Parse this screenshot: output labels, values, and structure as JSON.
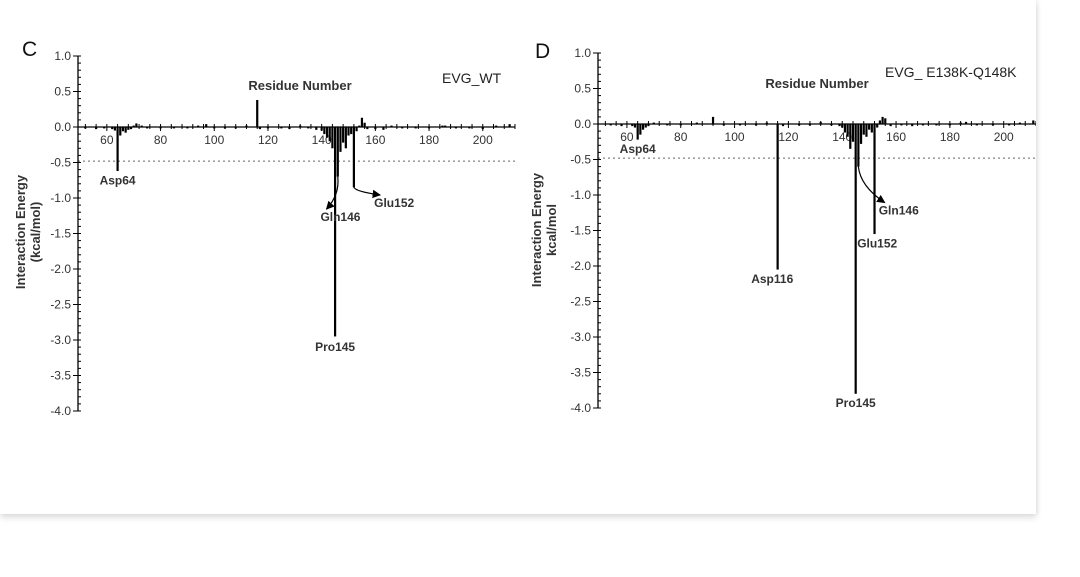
{
  "colors": {
    "bar": "#000000",
    "threshold": "#666666",
    "text": "#333333"
  },
  "chart_data": [
    {
      "type": "bar",
      "panel_label": "C",
      "title": "EVG_WT",
      "xlabel": "Residue Number",
      "ylabel_lines": [
        "Interaction Energy",
        "(kcal/mol)"
      ],
      "xlim": [
        50,
        212
      ],
      "ylim": [
        -4.0,
        1.0
      ],
      "xticks": [
        60,
        80,
        100,
        120,
        140,
        160,
        180,
        200
      ],
      "yticks": [
        1.0,
        0.5,
        0.0,
        -0.5,
        -1.0,
        -1.5,
        -2.0,
        -2.5,
        -3.0,
        -3.5,
        -4.0
      ],
      "ytick_labels": [
        "1.0",
        "0.5",
        "0.0",
        "-0.5",
        "-1.0",
        "-1.5",
        "-2.0",
        "-2.5",
        "-3.0",
        "-3.5",
        "-4.0"
      ],
      "threshold": -0.48,
      "bars": [
        {
          "x": 52,
          "y": -0.02
        },
        {
          "x": 56,
          "y": -0.03
        },
        {
          "x": 59,
          "y": -0.02
        },
        {
          "x": 62,
          "y": -0.03
        },
        {
          "x": 63,
          "y": -0.05
        },
        {
          "x": 64,
          "y": -0.62
        },
        {
          "x": 65,
          "y": -0.12
        },
        {
          "x": 66,
          "y": -0.06
        },
        {
          "x": 67,
          "y": -0.08
        },
        {
          "x": 68,
          "y": -0.04
        },
        {
          "x": 69,
          "y": -0.03
        },
        {
          "x": 70,
          "y": 0.02
        },
        {
          "x": 71,
          "y": 0.05
        },
        {
          "x": 73,
          "y": 0.02
        },
        {
          "x": 75,
          "y": -0.02
        },
        {
          "x": 80,
          "y": -0.02
        },
        {
          "x": 85,
          "y": -0.02
        },
        {
          "x": 90,
          "y": -0.02
        },
        {
          "x": 94,
          "y": 0.02
        },
        {
          "x": 97,
          "y": 0.04
        },
        {
          "x": 100,
          "y": -0.02
        },
        {
          "x": 104,
          "y": -0.02
        },
        {
          "x": 108,
          "y": -0.02
        },
        {
          "x": 112,
          "y": 0.02
        },
        {
          "x": 116,
          "y": 0.38
        },
        {
          "x": 117,
          "y": -0.03
        },
        {
          "x": 120,
          "y": -0.02
        },
        {
          "x": 125,
          "y": -0.02
        },
        {
          "x": 128,
          "y": -0.03
        },
        {
          "x": 132,
          "y": 0.02
        },
        {
          "x": 135,
          "y": -0.02
        },
        {
          "x": 138,
          "y": -0.04
        },
        {
          "x": 140,
          "y": -0.05
        },
        {
          "x": 141,
          "y": -0.1
        },
        {
          "x": 142,
          "y": -0.15
        },
        {
          "x": 143,
          "y": -0.2
        },
        {
          "x": 144,
          "y": -0.3
        },
        {
          "x": 145,
          "y": -2.95
        },
        {
          "x": 146,
          "y": -0.7
        },
        {
          "x": 147,
          "y": -0.35
        },
        {
          "x": 148,
          "y": -0.22
        },
        {
          "x": 149,
          "y": -0.3
        },
        {
          "x": 150,
          "y": -0.12
        },
        {
          "x": 151,
          "y": -0.1
        },
        {
          "x": 152,
          "y": -0.85
        },
        {
          "x": 153,
          "y": -0.06
        },
        {
          "x": 154,
          "y": 0.02
        },
        {
          "x": 155,
          "y": 0.13
        },
        {
          "x": 156,
          "y": 0.06
        },
        {
          "x": 157,
          "y": -0.03
        },
        {
          "x": 160,
          "y": -0.03
        },
        {
          "x": 163,
          "y": -0.04
        },
        {
          "x": 166,
          "y": 0.02
        },
        {
          "x": 170,
          "y": -0.02
        },
        {
          "x": 175,
          "y": -0.02
        },
        {
          "x": 180,
          "y": -0.02
        },
        {
          "x": 185,
          "y": 0.02
        },
        {
          "x": 186,
          "y": 0.02
        },
        {
          "x": 190,
          "y": -0.02
        },
        {
          "x": 195,
          "y": -0.02
        },
        {
          "x": 200,
          "y": -0.03
        },
        {
          "x": 205,
          "y": 0.02
        },
        {
          "x": 210,
          "y": 0.04
        }
      ],
      "annotations": [
        {
          "text": "Asp64",
          "x": 64,
          "y": -0.62,
          "tx": 64,
          "ty": -0.75,
          "arrow": false
        },
        {
          "text": "Gln146",
          "x": 146,
          "y": -0.7,
          "tx": 147,
          "ty": -1.27,
          "arrow": true
        },
        {
          "text": "Glu152",
          "x": 152,
          "y": -0.85,
          "tx": 167,
          "ty": -1.07,
          "arrow": true
        },
        {
          "text": "Pro145",
          "x": 145,
          "y": -2.95,
          "tx": 145,
          "ty": -3.1,
          "arrow": false
        }
      ]
    },
    {
      "type": "bar",
      "panel_label": "D",
      "title": "EVG_ E138K-Q148K",
      "xlabel": "Residue Number",
      "ylabel_lines": [
        "Interaction Energy",
        "kcal/mol"
      ],
      "xlim": [
        50,
        212
      ],
      "ylim": [
        -4.0,
        1.0
      ],
      "xticks": [
        60,
        80,
        100,
        120,
        140,
        160,
        180,
        200
      ],
      "yticks": [
        1.0,
        0.5,
        0.0,
        -0.5,
        -1.0,
        -1.5,
        -2.0,
        -2.5,
        -3.0,
        -3.5,
        -4.0
      ],
      "ytick_labels": [
        "1.0",
        "0.5",
        "0.0",
        "-0.5",
        "-1.0",
        "-1.5",
        "-2.0",
        "-2.5",
        "-3.0",
        "-3.5",
        "-4.0"
      ],
      "threshold": -0.48,
      "bars": [
        {
          "x": 54,
          "y": -0.02
        },
        {
          "x": 58,
          "y": -0.03
        },
        {
          "x": 62,
          "y": -0.03
        },
        {
          "x": 63,
          "y": -0.05
        },
        {
          "x": 64,
          "y": -0.22
        },
        {
          "x": 65,
          "y": -0.15
        },
        {
          "x": 66,
          "y": -0.08
        },
        {
          "x": 67,
          "y": -0.05
        },
        {
          "x": 68,
          "y": -0.03
        },
        {
          "x": 70,
          "y": 0.02
        },
        {
          "x": 75,
          "y": -0.02
        },
        {
          "x": 80,
          "y": -0.02
        },
        {
          "x": 86,
          "y": 0.02
        },
        {
          "x": 92,
          "y": 0.1
        },
        {
          "x": 96,
          "y": -0.02
        },
        {
          "x": 102,
          "y": -0.02
        },
        {
          "x": 108,
          "y": -0.02
        },
        {
          "x": 112,
          "y": 0.02
        },
        {
          "x": 116,
          "y": -2.05
        },
        {
          "x": 118,
          "y": -0.03
        },
        {
          "x": 124,
          "y": -0.02
        },
        {
          "x": 128,
          "y": -0.02
        },
        {
          "x": 132,
          "y": 0.03
        },
        {
          "x": 136,
          "y": -0.02
        },
        {
          "x": 139,
          "y": -0.03
        },
        {
          "x": 140,
          "y": -0.05
        },
        {
          "x": 141,
          "y": -0.12
        },
        {
          "x": 142,
          "y": -0.18
        },
        {
          "x": 143,
          "y": -0.35
        },
        {
          "x": 144,
          "y": -0.25
        },
        {
          "x": 145,
          "y": -3.8
        },
        {
          "x": 146,
          "y": -0.6
        },
        {
          "x": 147,
          "y": -0.28
        },
        {
          "x": 148,
          "y": -0.15
        },
        {
          "x": 149,
          "y": -0.18
        },
        {
          "x": 150,
          "y": -0.08
        },
        {
          "x": 151,
          "y": -0.12
        },
        {
          "x": 152,
          "y": -1.55
        },
        {
          "x": 153,
          "y": -0.05
        },
        {
          "x": 154,
          "y": 0.05
        },
        {
          "x": 155,
          "y": 0.1
        },
        {
          "x": 156,
          "y": 0.08
        },
        {
          "x": 158,
          "y": -0.03
        },
        {
          "x": 162,
          "y": -0.02
        },
        {
          "x": 166,
          "y": -0.03
        },
        {
          "x": 170,
          "y": -0.02
        },
        {
          "x": 175,
          "y": -0.02
        },
        {
          "x": 180,
          "y": -0.02
        },
        {
          "x": 184,
          "y": 0.02
        },
        {
          "x": 186,
          "y": 0.03
        },
        {
          "x": 190,
          "y": -0.02
        },
        {
          "x": 196,
          "y": -0.02
        },
        {
          "x": 202,
          "y": -0.02
        },
        {
          "x": 206,
          "y": 0.02
        },
        {
          "x": 211,
          "y": 0.05
        }
      ],
      "annotations": [
        {
          "text": "Asp64",
          "x": 64,
          "y": -0.22,
          "tx": 64,
          "ty": -0.35,
          "arrow": false
        },
        {
          "text": "Asp116",
          "x": 116,
          "y": -2.05,
          "tx": 114,
          "ty": -2.18,
          "arrow": false
        },
        {
          "text": "Gln146",
          "x": 146,
          "y": -0.6,
          "tx": 161,
          "ty": -1.22,
          "arrow": true
        },
        {
          "text": "Glu152",
          "x": 152,
          "y": -1.55,
          "tx": 153,
          "ty": -1.68,
          "arrow": false
        },
        {
          "text": "Pro145",
          "x": 145,
          "y": -3.8,
          "tx": 145,
          "ty": -3.93,
          "arrow": false
        }
      ]
    }
  ]
}
